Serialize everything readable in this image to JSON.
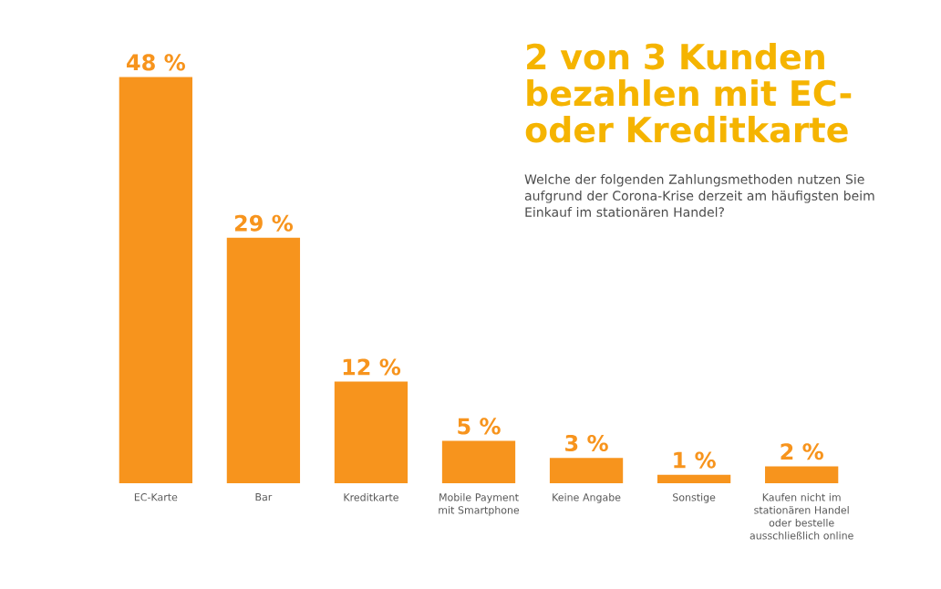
{
  "chart_data": {
    "type": "bar",
    "title": "2 von 3 Kunden bezahlen mit EC- oder Kreditkarte",
    "subtitle": "Welche der folgenden Zahlungsmethoden nutzen Sie aufgrund der Corona-Krise derzeit am häufigsten beim Einkauf im stationären Handel?",
    "categories": [
      "EC-Karte",
      "Bar",
      "Kreditkarte",
      "Mobile Payment mit Smartphone",
      "Keine Angabe",
      "Sonstige",
      "Kaufen nicht im stationären Handel oder bestelle ausschließlich online"
    ],
    "values": [
      48,
      29,
      12,
      5,
      3,
      1,
      2
    ],
    "value_labels": [
      "48 %",
      "29 %",
      "12 %",
      "5 %",
      "3 %",
      "1 %",
      "2 %"
    ],
    "color": "#f7941d"
  }
}
